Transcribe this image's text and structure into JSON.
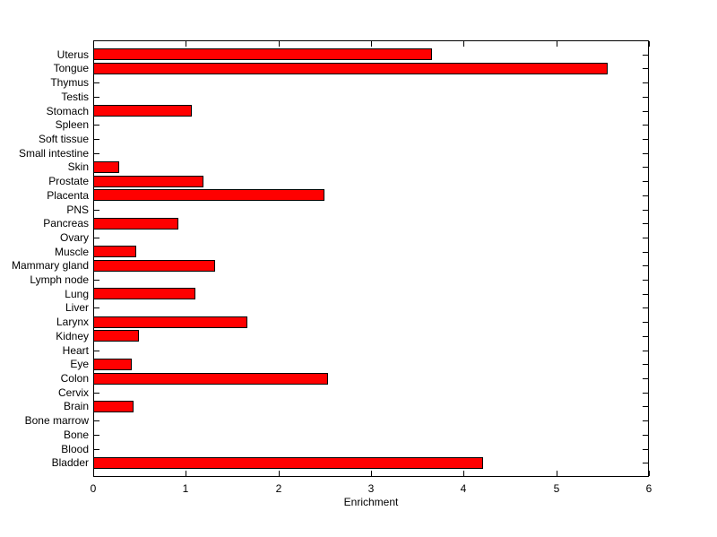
{
  "figure": {
    "background_color": "#ffffff",
    "axis_color": "#000000",
    "text_color": "#000000"
  },
  "chart_data": {
    "type": "bar",
    "orientation": "horizontal",
    "title": "",
    "xlabel": "Enrichment",
    "ylabel": "",
    "xlim": [
      0,
      6
    ],
    "xticks": [
      "0",
      "1",
      "2",
      "3",
      "4",
      "5",
      "6"
    ],
    "grid": false,
    "legend": null,
    "bar_color": "#ff0000",
    "bar_edge_color": "#000000",
    "categories_order": "top-to-bottom",
    "categories": [
      "Uterus",
      "Tongue",
      "Thymus",
      "Testis",
      "Stomach",
      "Spleen",
      "Soft tissue",
      "Small intestine",
      "Skin",
      "Prostate",
      "Placenta",
      "PNS",
      "Pancreas",
      "Ovary",
      "Muscle",
      "Mammary gland",
      "Lymph node",
      "Lung",
      "Liver",
      "Larynx",
      "Kidney",
      "Heart",
      "Eye",
      "Colon",
      "Cervix",
      "Brain",
      "Bone marrow",
      "Bone",
      "Blood",
      "Bladder"
    ],
    "values": [
      3.66,
      5.55,
      0,
      0,
      1.06,
      0,
      0,
      0,
      0.28,
      1.19,
      2.5,
      0,
      0.92,
      0,
      0.46,
      1.32,
      0,
      1.1,
      0,
      1.66,
      0.49,
      0,
      0.42,
      2.54,
      0,
      0.44,
      0,
      0,
      0,
      4.21
    ]
  }
}
